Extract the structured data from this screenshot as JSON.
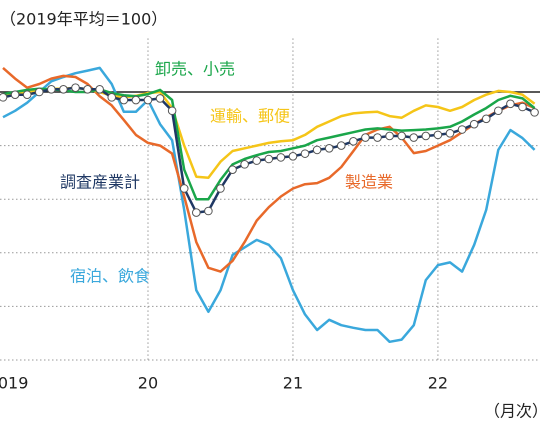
{
  "chart_data": {
    "type": "line",
    "title": "（2019年平均＝100）",
    "x_label": "（月次）",
    "x": [
      0,
      1,
      2,
      3,
      4,
      5,
      6,
      7,
      8,
      9,
      10,
      11,
      12,
      13,
      14,
      15,
      16,
      17,
      18,
      19,
      20,
      21,
      22,
      23,
      24,
      25,
      26,
      27,
      28,
      29,
      30,
      31,
      32,
      33,
      34,
      35,
      36,
      37,
      38,
      39,
      40,
      41,
      42,
      43,
      44
    ],
    "xlim": [
      -0.25,
      44.45
    ],
    "xticks": [
      {
        "value": 0,
        "label": "2019"
      },
      {
        "value": 12,
        "label": "20"
      },
      {
        "value": 24,
        "label": "21"
      },
      {
        "value": 36,
        "label": "22"
      }
    ],
    "ylim": [
      50,
      110
    ],
    "yticks": [
      50,
      60,
      70,
      80,
      90,
      100
    ],
    "grid": true,
    "series": [
      {
        "name": "宿泊、飲食",
        "color": "#3aa8dc",
        "values": [
          95.3,
          96.5,
          98,
          100,
          102,
          102.8,
          103.5,
          104,
          104.5,
          101.5,
          96.3,
          96.3,
          98.5,
          94,
          91,
          78,
          63,
          59,
          63,
          69.6,
          71,
          72.4,
          71.5,
          69,
          63,
          58.5,
          55.6,
          57.5,
          56.5,
          56,
          55.6,
          55.6,
          53.4,
          53.8,
          56.5,
          64.9,
          67.7,
          68.2,
          66.5,
          71.5,
          78,
          89.2,
          92.9,
          91.4,
          89.2
        ]
      },
      {
        "name": "製造業",
        "color": "#e8692a",
        "values": [
          104.5,
          102.5,
          100.8,
          101.5,
          102.5,
          103,
          102.8,
          101.5,
          99.2,
          97.5,
          94.8,
          92,
          90.5,
          90,
          88.5,
          80.5,
          72,
          67.2,
          66.5,
          68.5,
          72,
          76,
          78.5,
          80.5,
          82,
          82.8,
          83,
          84,
          86,
          89,
          92,
          93,
          93.5,
          91.5,
          88.6,
          89,
          90,
          91,
          92.5,
          94,
          95.3,
          96.5,
          97.5,
          98,
          97
        ]
      },
      {
        "name": "運輸、郵便",
        "color": "#f5c518",
        "values": [
          99.3,
          99.6,
          100,
          100.4,
          100.6,
          100.6,
          100.8,
          100.5,
          100,
          99.3,
          99,
          99.3,
          99.8,
          100,
          97,
          90,
          84.2,
          84,
          87,
          89,
          89.5,
          90,
          90.5,
          90.8,
          91,
          92,
          93.5,
          94.5,
          95.5,
          96,
          96.2,
          96.3,
          95.5,
          95.2,
          96.5,
          97.5,
          97.2,
          96.5,
          97.2,
          98.5,
          99.5,
          100.2,
          100,
          99.5,
          97.8
        ]
      },
      {
        "name": "卸売、小売",
        "color": "#1aa64a",
        "values": [
          99.6,
          100,
          100.4,
          100.6,
          100.5,
          100.3,
          100,
          100,
          100.5,
          99.8,
          99.4,
          99.2,
          99.6,
          100.4,
          98.5,
          85.5,
          80,
          80,
          83.6,
          86.5,
          87.5,
          88.2,
          88.8,
          89,
          89.5,
          90,
          91,
          91.5,
          92,
          92.5,
          93,
          93.2,
          93,
          92.8,
          92.9,
          93,
          93.2,
          93.5,
          94.5,
          95.8,
          97,
          98.5,
          99.3,
          98.8,
          97
        ]
      },
      {
        "name": "調査産業計",
        "color": "#1f3864",
        "values": [
          99,
          99.5,
          99.5,
          100,
          100.5,
          100.5,
          100.8,
          100.5,
          100.5,
          99,
          98.5,
          98.5,
          98.5,
          98.8,
          96.5,
          82,
          77.5,
          77.8,
          82,
          85.5,
          86.5,
          87.2,
          87.5,
          87.8,
          88,
          88.5,
          89.2,
          89.5,
          90,
          90.8,
          91.5,
          91.5,
          91.8,
          91.8,
          91.5,
          91.8,
          92,
          92.3,
          93,
          94,
          95,
          96.5,
          97.8,
          97.2,
          96.2
        ]
      }
    ]
  }
}
